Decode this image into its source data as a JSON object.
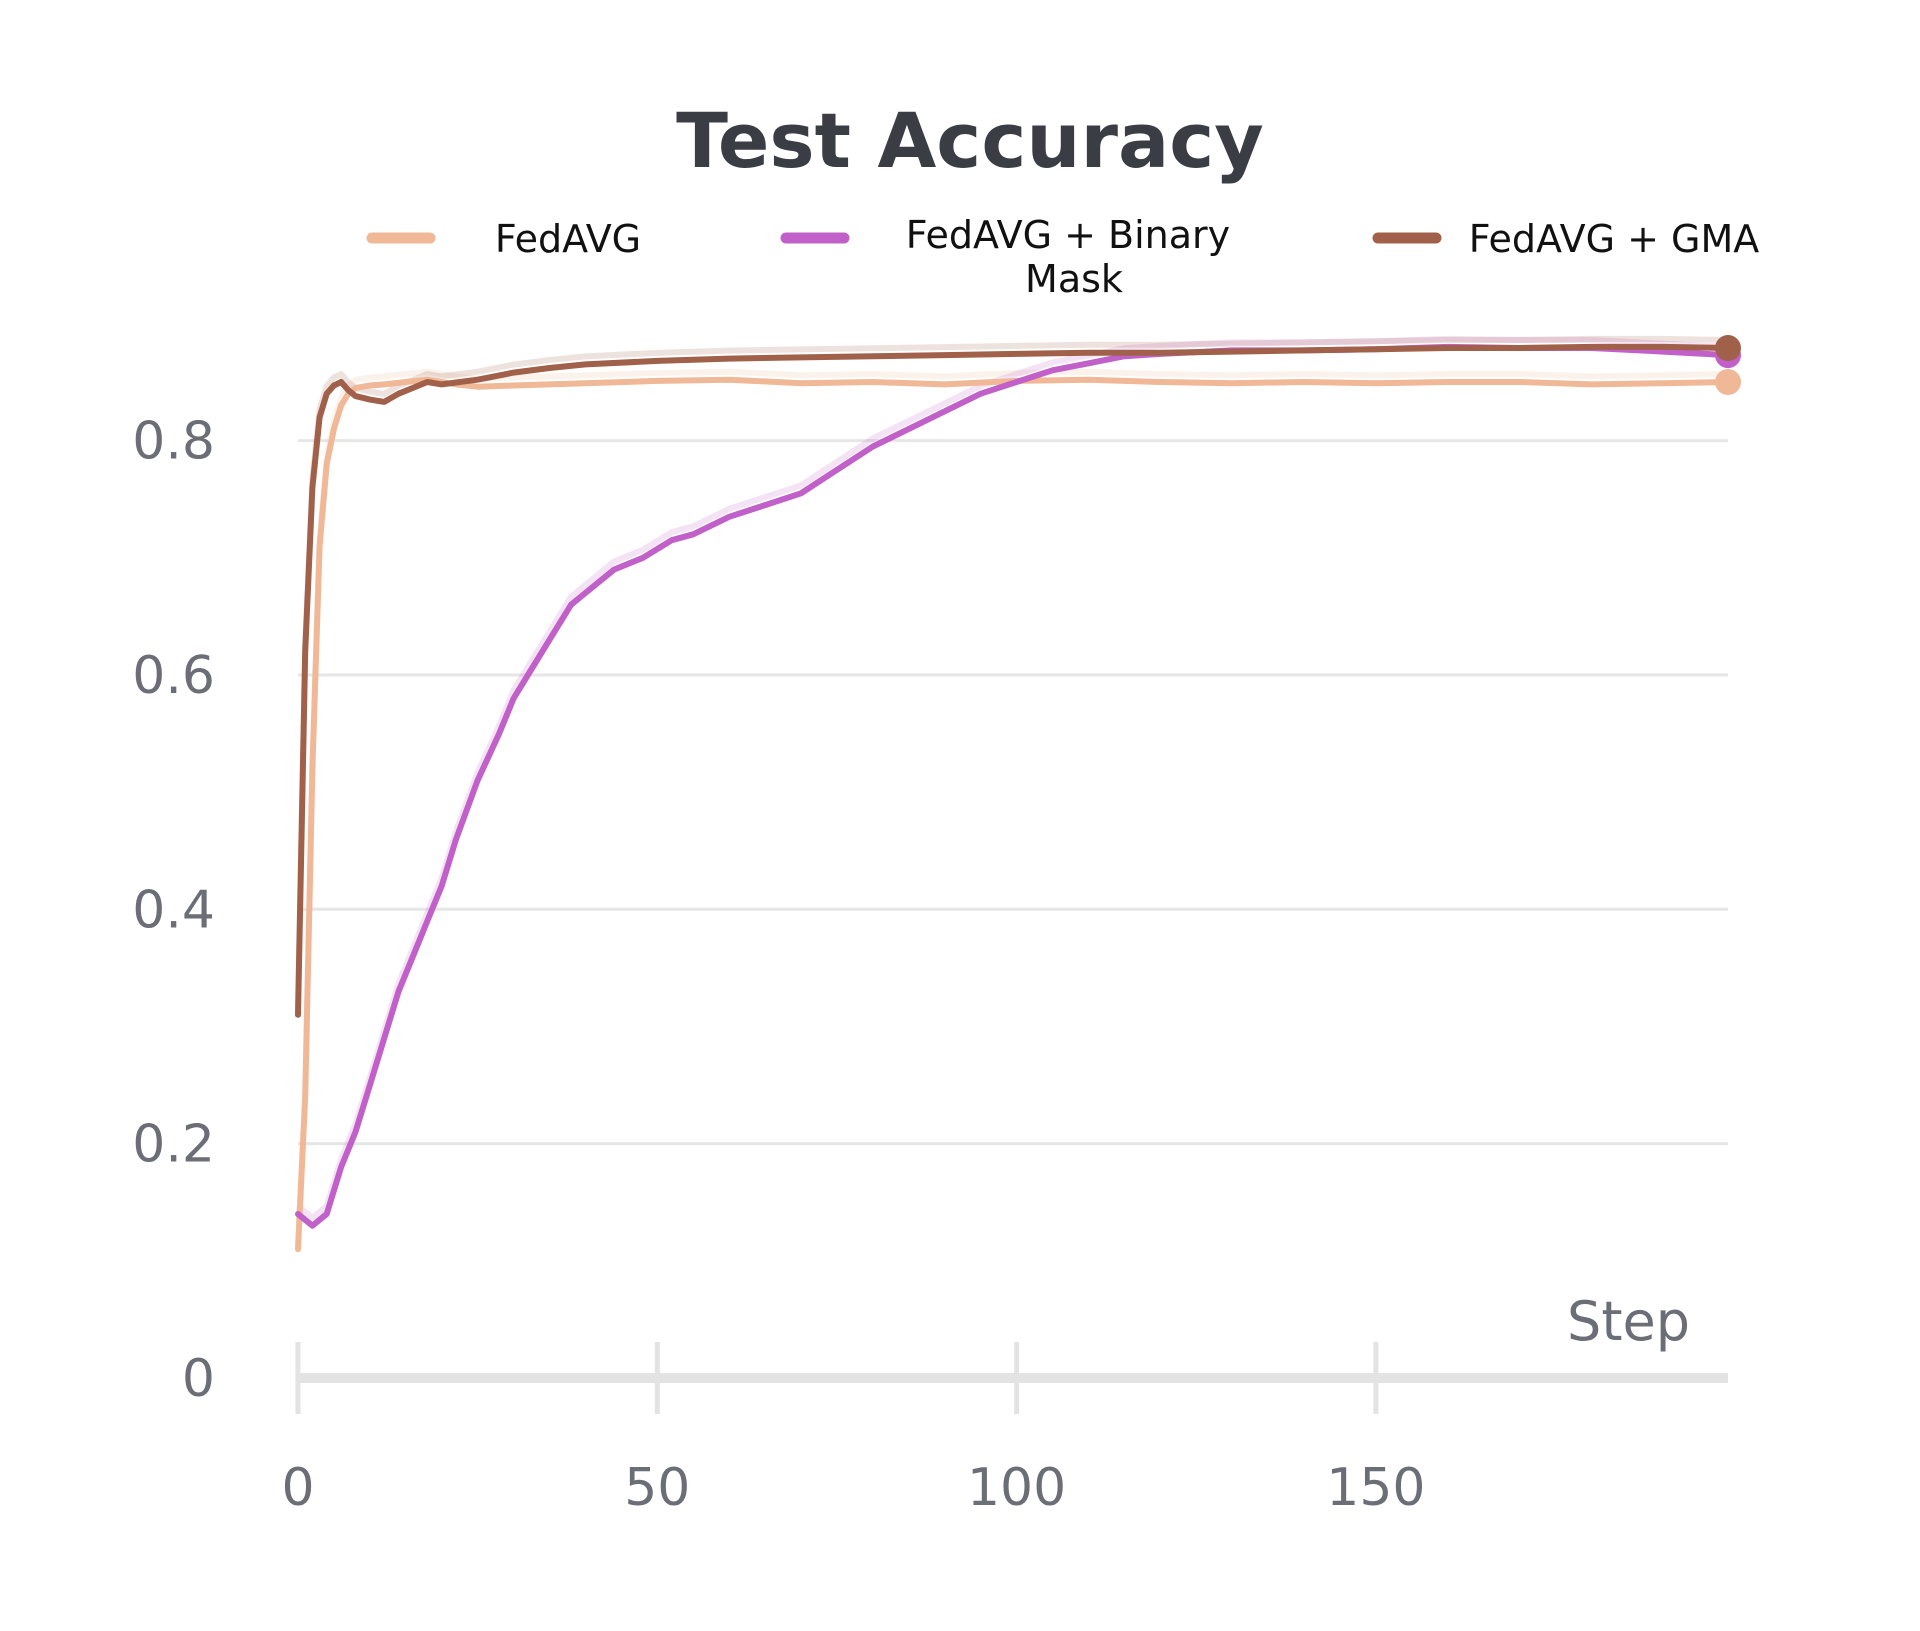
{
  "chart_data": {
    "type": "line",
    "title": "Test Accuracy",
    "xlabel": "Step",
    "ylabel": "",
    "xlim": [
      0,
      199
    ],
    "ylim": [
      0,
      0.92
    ],
    "x_ticks": [
      0,
      50,
      100,
      150
    ],
    "x_tick_labels": [
      "0",
      "50",
      "100",
      "150"
    ],
    "y_ticks": [
      0,
      0.2,
      0.4,
      0.6,
      0.8
    ],
    "y_tick_labels": [
      "0",
      "0.2",
      "0.4",
      "0.6",
      "0.8"
    ],
    "grid": "horizontal",
    "legend_position": "top",
    "series": [
      {
        "name": "FedAVG",
        "color": "#f0b896",
        "x": [
          0,
          1,
          2,
          3,
          4,
          5,
          6,
          7,
          8,
          10,
          12,
          15,
          18,
          22,
          25,
          30,
          40,
          50,
          60,
          70,
          80,
          90,
          100,
          110,
          120,
          130,
          140,
          150,
          160,
          170,
          180,
          190,
          199
        ],
        "y": [
          0.11,
          0.24,
          0.52,
          0.71,
          0.78,
          0.81,
          0.83,
          0.84,
          0.845,
          0.847,
          0.848,
          0.85,
          0.852,
          0.848,
          0.846,
          0.847,
          0.849,
          0.851,
          0.852,
          0.849,
          0.85,
          0.848,
          0.851,
          0.852,
          0.85,
          0.849,
          0.85,
          0.849,
          0.85,
          0.85,
          0.848,
          0.849,
          0.85
        ]
      },
      {
        "name": "FedAVG + Binary Mask",
        "color": "#c060c8",
        "x": [
          0,
          2,
          4,
          6,
          8,
          10,
          12,
          14,
          16,
          18,
          20,
          22,
          25,
          28,
          30,
          32,
          35,
          38,
          40,
          44,
          48,
          52,
          55,
          60,
          65,
          70,
          75,
          80,
          85,
          90,
          95,
          100,
          105,
          110,
          115,
          120,
          130,
          140,
          150,
          160,
          170,
          180,
          190,
          199
        ],
        "y": [
          0.14,
          0.13,
          0.14,
          0.18,
          0.21,
          0.25,
          0.29,
          0.33,
          0.36,
          0.39,
          0.42,
          0.46,
          0.51,
          0.55,
          0.58,
          0.6,
          0.63,
          0.66,
          0.67,
          0.69,
          0.7,
          0.715,
          0.72,
          0.735,
          0.745,
          0.755,
          0.775,
          0.795,
          0.81,
          0.825,
          0.84,
          0.85,
          0.86,
          0.866,
          0.872,
          0.874,
          0.877,
          0.877,
          0.878,
          0.88,
          0.879,
          0.879,
          0.876,
          0.873
        ]
      },
      {
        "name": "FedAVG + GMA",
        "color": "#a0604a",
        "x": [
          0,
          1,
          2,
          3,
          4,
          5,
          6,
          7,
          8,
          10,
          12,
          14,
          16,
          18,
          20,
          25,
          30,
          35,
          40,
          50,
          60,
          70,
          80,
          90,
          100,
          110,
          120,
          130,
          140,
          150,
          160,
          170,
          180,
          190,
          199
        ],
        "y": [
          0.31,
          0.62,
          0.76,
          0.82,
          0.84,
          0.847,
          0.85,
          0.843,
          0.838,
          0.835,
          0.833,
          0.84,
          0.845,
          0.85,
          0.848,
          0.852,
          0.858,
          0.862,
          0.865,
          0.868,
          0.87,
          0.871,
          0.872,
          0.873,
          0.874,
          0.875,
          0.875,
          0.876,
          0.877,
          0.878,
          0.879,
          0.879,
          0.88,
          0.88,
          0.879
        ]
      }
    ]
  }
}
